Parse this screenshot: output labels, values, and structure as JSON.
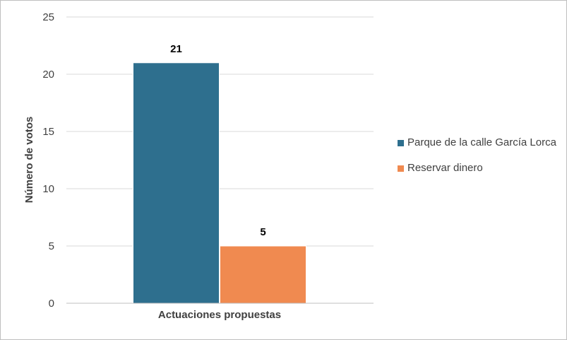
{
  "chart_data": {
    "type": "bar",
    "categories": [
      "Actuaciones propuestas"
    ],
    "series": [
      {
        "name": "Parque de la calle García Lorca",
        "values": [
          21
        ],
        "color": "#2E6F8E"
      },
      {
        "name": "Reservar dinero",
        "values": [
          5
        ],
        "color": "#F08A50"
      }
    ],
    "ylabel": "Número de votos",
    "xlabel": "Actuaciones propuestas",
    "ylim": [
      0,
      25
    ],
    "yticks": [
      0,
      5,
      10,
      15,
      20,
      25
    ],
    "grid": true,
    "legend_position": "right",
    "data_labels": [
      "21",
      "5"
    ]
  }
}
